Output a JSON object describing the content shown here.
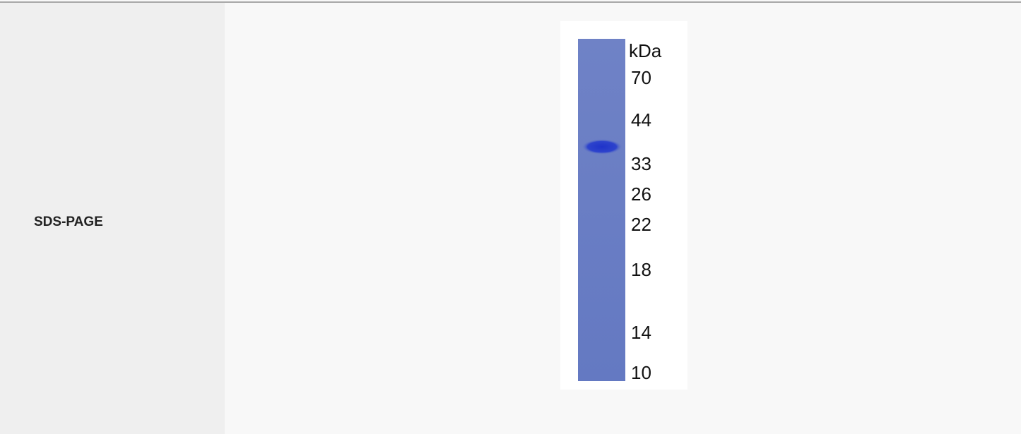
{
  "row": {
    "label": "SDS-PAGE",
    "gel": {
      "unit_label": "kDa",
      "markers": [
        "70",
        "44",
        "33",
        "26",
        "22",
        "18",
        "14",
        "10"
      ]
    }
  }
}
